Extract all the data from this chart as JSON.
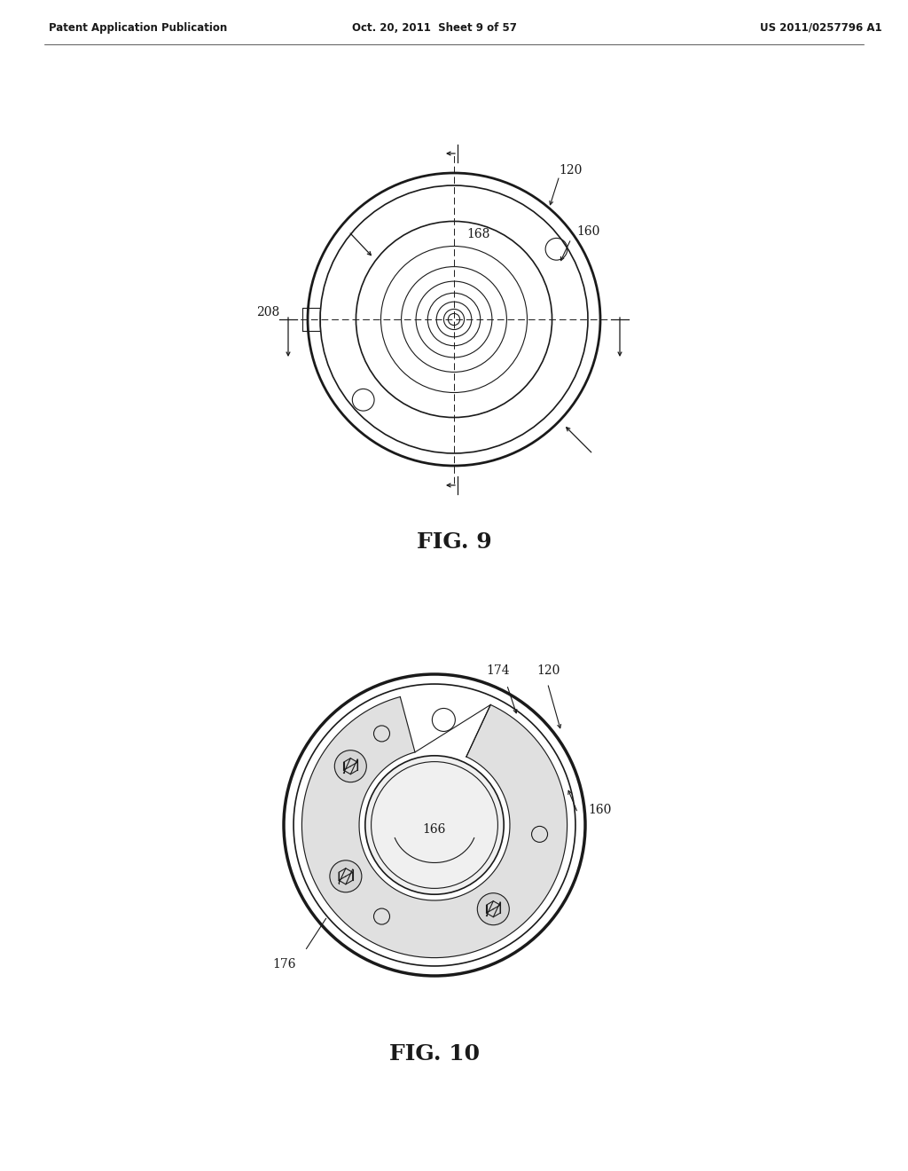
{
  "bg_color": "#ffffff",
  "header_left": "Patent Application Publication",
  "header_mid": "Oct. 20, 2011  Sheet 9 of 57",
  "header_right": "US 2011/0257796 A1",
  "fig9_label": "FIG. 9",
  "fig10_label": "FIG. 10",
  "label_color": "#1a1a1a",
  "line_color": "#1a1a1a"
}
